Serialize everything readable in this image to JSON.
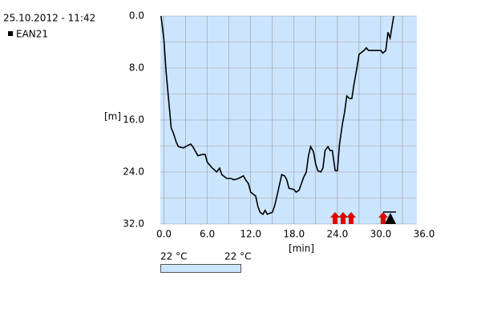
{
  "chart_data": {
    "type": "line",
    "title": "25.10.2012 - 11:42",
    "y_label": "[m]",
    "x_label": "[min]",
    "temperature_labels": [
      "22 °C",
      "22 °C"
    ],
    "invert_y": true,
    "grid": true,
    "xlim": [
      -0.5,
      35
    ],
    "ylim": [
      0,
      32
    ],
    "xticks": [
      {
        "value": 0,
        "label": "0.0"
      },
      {
        "value": 6,
        "label": "6.0"
      },
      {
        "value": 12,
        "label": "12.0"
      },
      {
        "value": 18,
        "label": "18.0"
      },
      {
        "value": 24,
        "label": "24.0"
      },
      {
        "value": 30,
        "label": "30.0"
      },
      {
        "value": 36,
        "label": "36.0"
      }
    ],
    "yticks": [
      {
        "value": 0,
        "label": "0.0"
      },
      {
        "value": 8,
        "label": "8.0"
      },
      {
        "value": 16,
        "label": "16.0"
      },
      {
        "value": 24,
        "label": "24.0"
      },
      {
        "value": 32,
        "label": "32.0"
      }
    ],
    "x": [
      -0.4,
      0,
      0.3,
      0.7,
      1.0,
      1.3,
      1.7,
      2.0,
      2.7,
      3.0,
      3.7,
      4.0,
      4.7,
      5.3,
      5.7,
      6.0,
      6.7,
      7.3,
      7.7,
      8.0,
      8.7,
      9.3,
      9.7,
      10.3,
      11.0,
      11.3,
      11.7,
      12.0,
      12.7,
      13.0,
      13.3,
      13.7,
      14.0,
      14.3,
      15.0,
      15.3,
      15.7,
      16.3,
      16.7,
      17.0,
      17.3,
      18.0,
      18.3,
      18.7,
      19.3,
      19.7,
      20.0,
      20.3,
      20.7,
      21.0,
      21.3,
      21.7,
      22.0,
      22.3,
      22.7,
      23.0,
      23.3,
      23.7,
      24.0,
      24.3,
      24.7,
      25.0,
      25.3,
      25.7,
      26.0,
      26.3,
      26.7,
      27.0,
      27.7,
      28.0,
      28.3,
      30.0,
      30.3,
      30.7,
      31.0,
      31.3,
      31.8
    ],
    "series": [
      {
        "name": "EAN21",
        "color": "#000000",
        "values": [
          0,
          3.7,
          8.6,
          13.5,
          17.2,
          18.0,
          19.4,
          20.1,
          20.3,
          20.1,
          19.7,
          20.1,
          21.5,
          21.3,
          21.3,
          22.5,
          23.4,
          24.0,
          23.4,
          24.4,
          25.0,
          25.0,
          25.2,
          25.0,
          24.6,
          25.2,
          25.8,
          27.1,
          27.7,
          29.3,
          30.2,
          30.5,
          29.9,
          30.5,
          30.2,
          29.3,
          27.4,
          24.4,
          24.6,
          25.2,
          26.5,
          26.7,
          27.1,
          26.8,
          24.9,
          24.0,
          21.5,
          20.1,
          20.9,
          22.8,
          23.8,
          24.0,
          23.4,
          20.7,
          20.1,
          20.7,
          20.7,
          23.8,
          23.8,
          19.7,
          16.6,
          14.8,
          12.3,
          12.7,
          12.7,
          10.5,
          8.0,
          5.9,
          5.3,
          4.9,
          5.3,
          5.3,
          5.7,
          5.3,
          2.5,
          3.4,
          0
        ]
      }
    ]
  }
}
